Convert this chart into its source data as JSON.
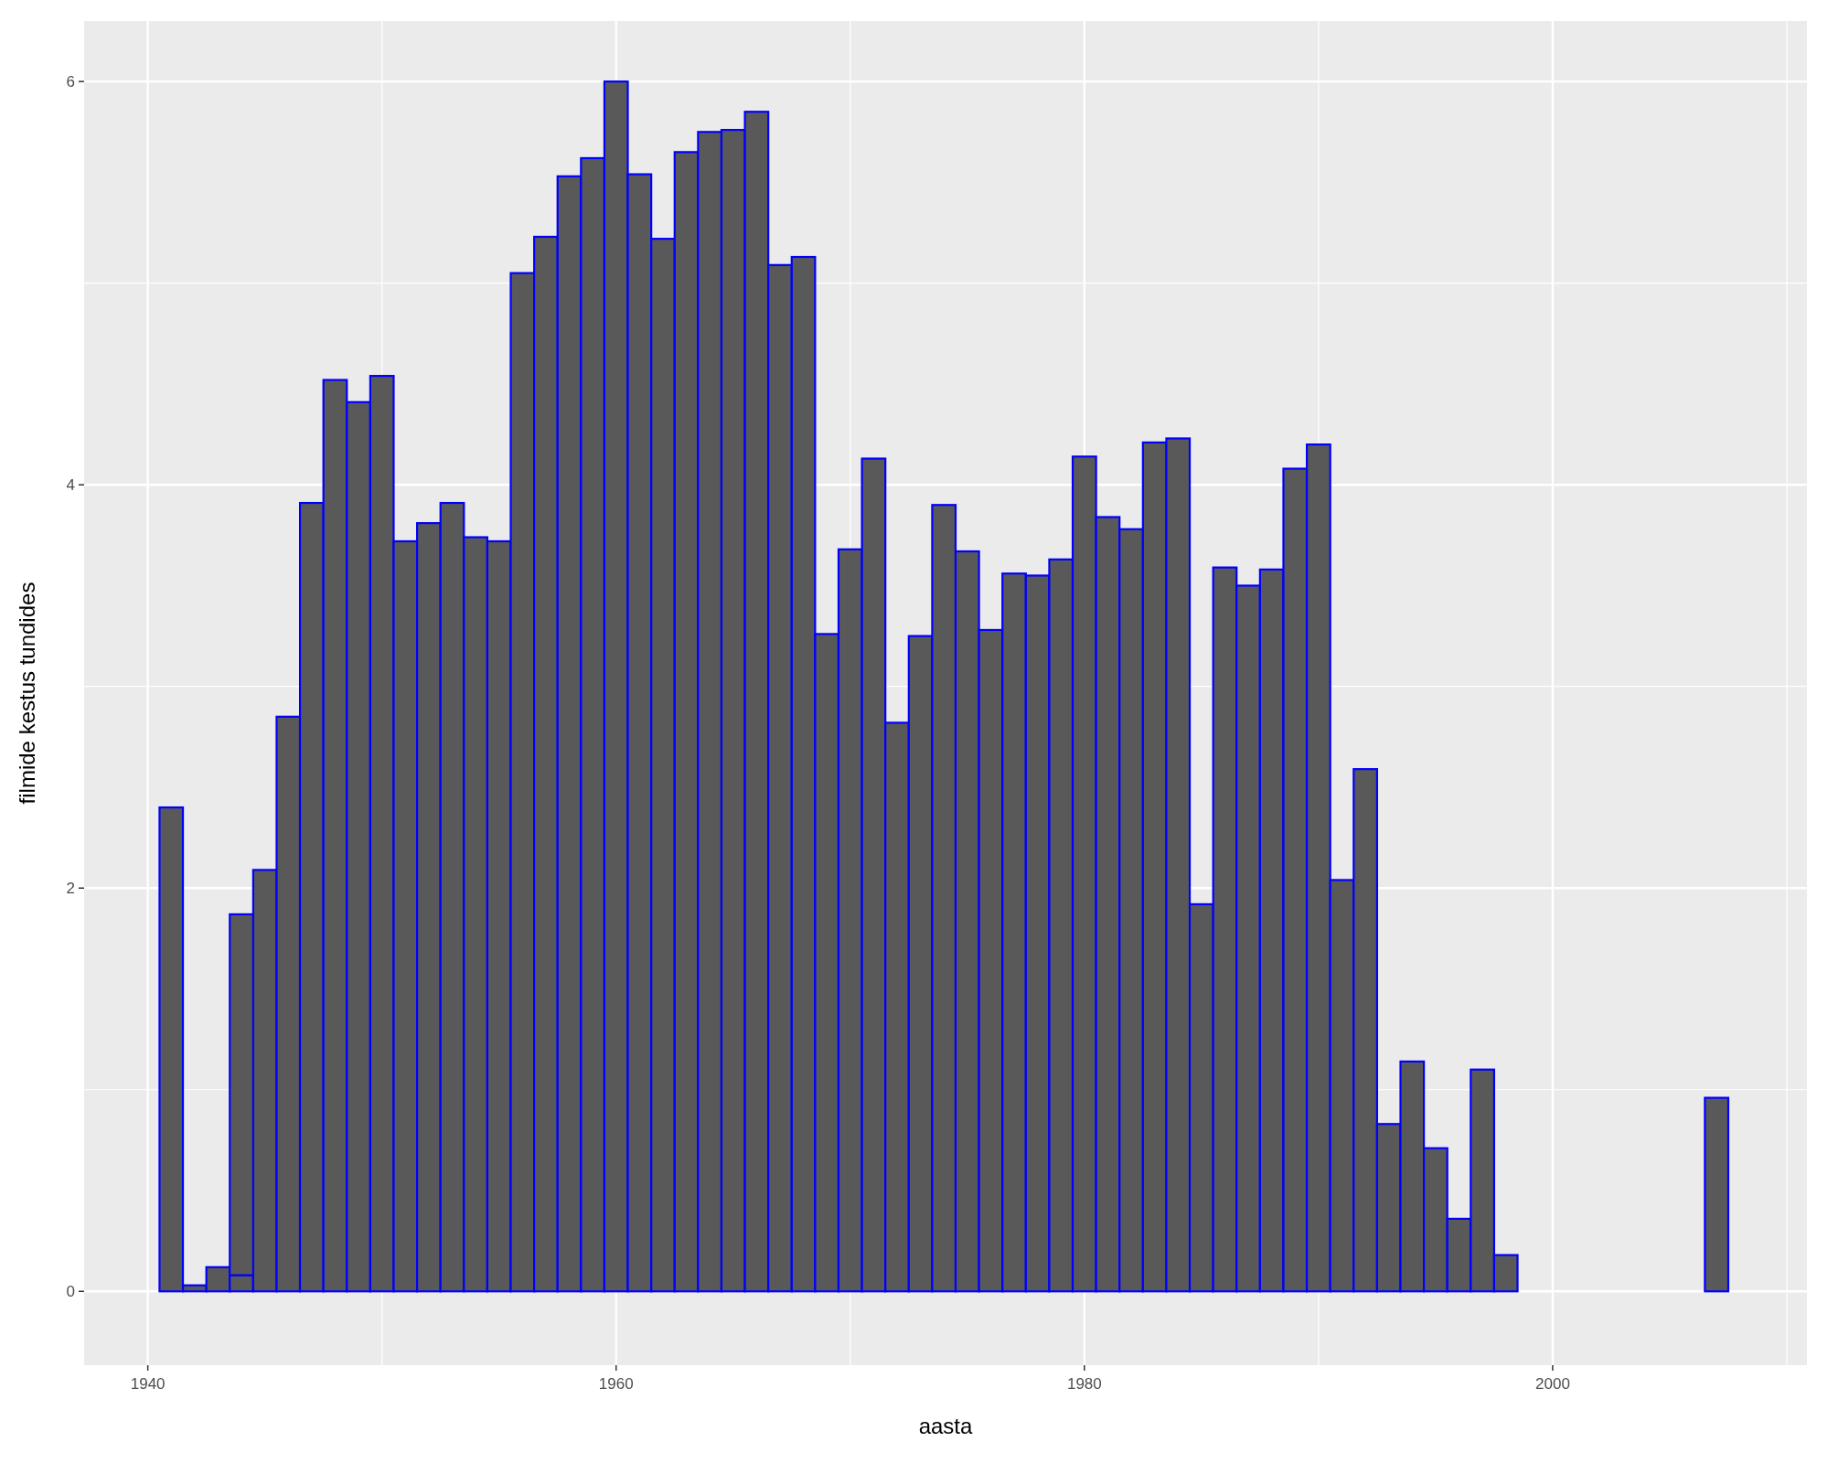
{
  "chart_data": {
    "type": "bar",
    "xlabel": "aasta",
    "ylabel": "filmide kestus tundides",
    "stacked": true,
    "grid": true,
    "x": [
      1941,
      1942,
      1943,
      1944,
      1945,
      1946,
      1947,
      1948,
      1949,
      1950,
      1951,
      1952,
      1953,
      1954,
      1955,
      1956,
      1957,
      1958,
      1959,
      1960,
      1961,
      1962,
      1963,
      1964,
      1965,
      1966,
      1967,
      1968,
      1969,
      1970,
      1971,
      1972,
      1973,
      1974,
      1975,
      1976,
      1977,
      1978,
      1979,
      1980,
      1981,
      1982,
      1983,
      1984,
      1985,
      1986,
      1987,
      1988,
      1989,
      1990,
      1991,
      1992,
      1993,
      1994,
      1995,
      1996,
      1997,
      1998,
      2007
    ],
    "series": [
      {
        "color": "#595959",
        "values": [
          2.4,
          0.03,
          0.12,
          0.08,
          2.09,
          2.85,
          3.91,
          4.52,
          4.41,
          4.54,
          3.72,
          3.81,
          3.91,
          3.74,
          3.72,
          5.05,
          5.23,
          5.53,
          5.62,
          6.0,
          5.54,
          5.22,
          5.65,
          5.75,
          5.76,
          5.85,
          5.09,
          5.13,
          3.26,
          3.68,
          4.13,
          2.82,
          3.25,
          3.9,
          3.67,
          3.28,
          3.56,
          3.55,
          3.63,
          4.14,
          3.84,
          3.78,
          4.21,
          4.23,
          1.92,
          3.59,
          3.5,
          3.58,
          4.08,
          4.2,
          2.04,
          2.59,
          0.83,
          1.14,
          0.71,
          0.36,
          1.1,
          0.18,
          0.96
        ]
      },
      {
        "color": "#595959",
        "values": [
          null,
          null,
          null,
          1.79,
          null,
          null,
          null,
          null,
          null,
          null,
          null,
          null,
          null,
          null,
          null,
          null,
          null,
          null,
          null,
          null,
          null,
          null,
          null,
          null,
          null,
          null,
          null,
          null,
          null,
          null,
          null,
          null,
          null,
          null,
          null,
          null,
          null,
          null,
          null,
          null,
          null,
          null,
          null,
          null,
          null,
          null,
          null,
          null,
          null,
          null,
          null,
          null,
          null,
          null,
          null,
          null,
          null,
          null,
          null
        ]
      }
    ],
    "xlim": [
      1937.28,
      2010.86
    ],
    "xticks": [
      1940,
      1960,
      1980,
      2000
    ],
    "ylim": [
      -0.366,
      6.3
    ],
    "yticks": [
      0,
      2,
      4,
      6
    ]
  }
}
